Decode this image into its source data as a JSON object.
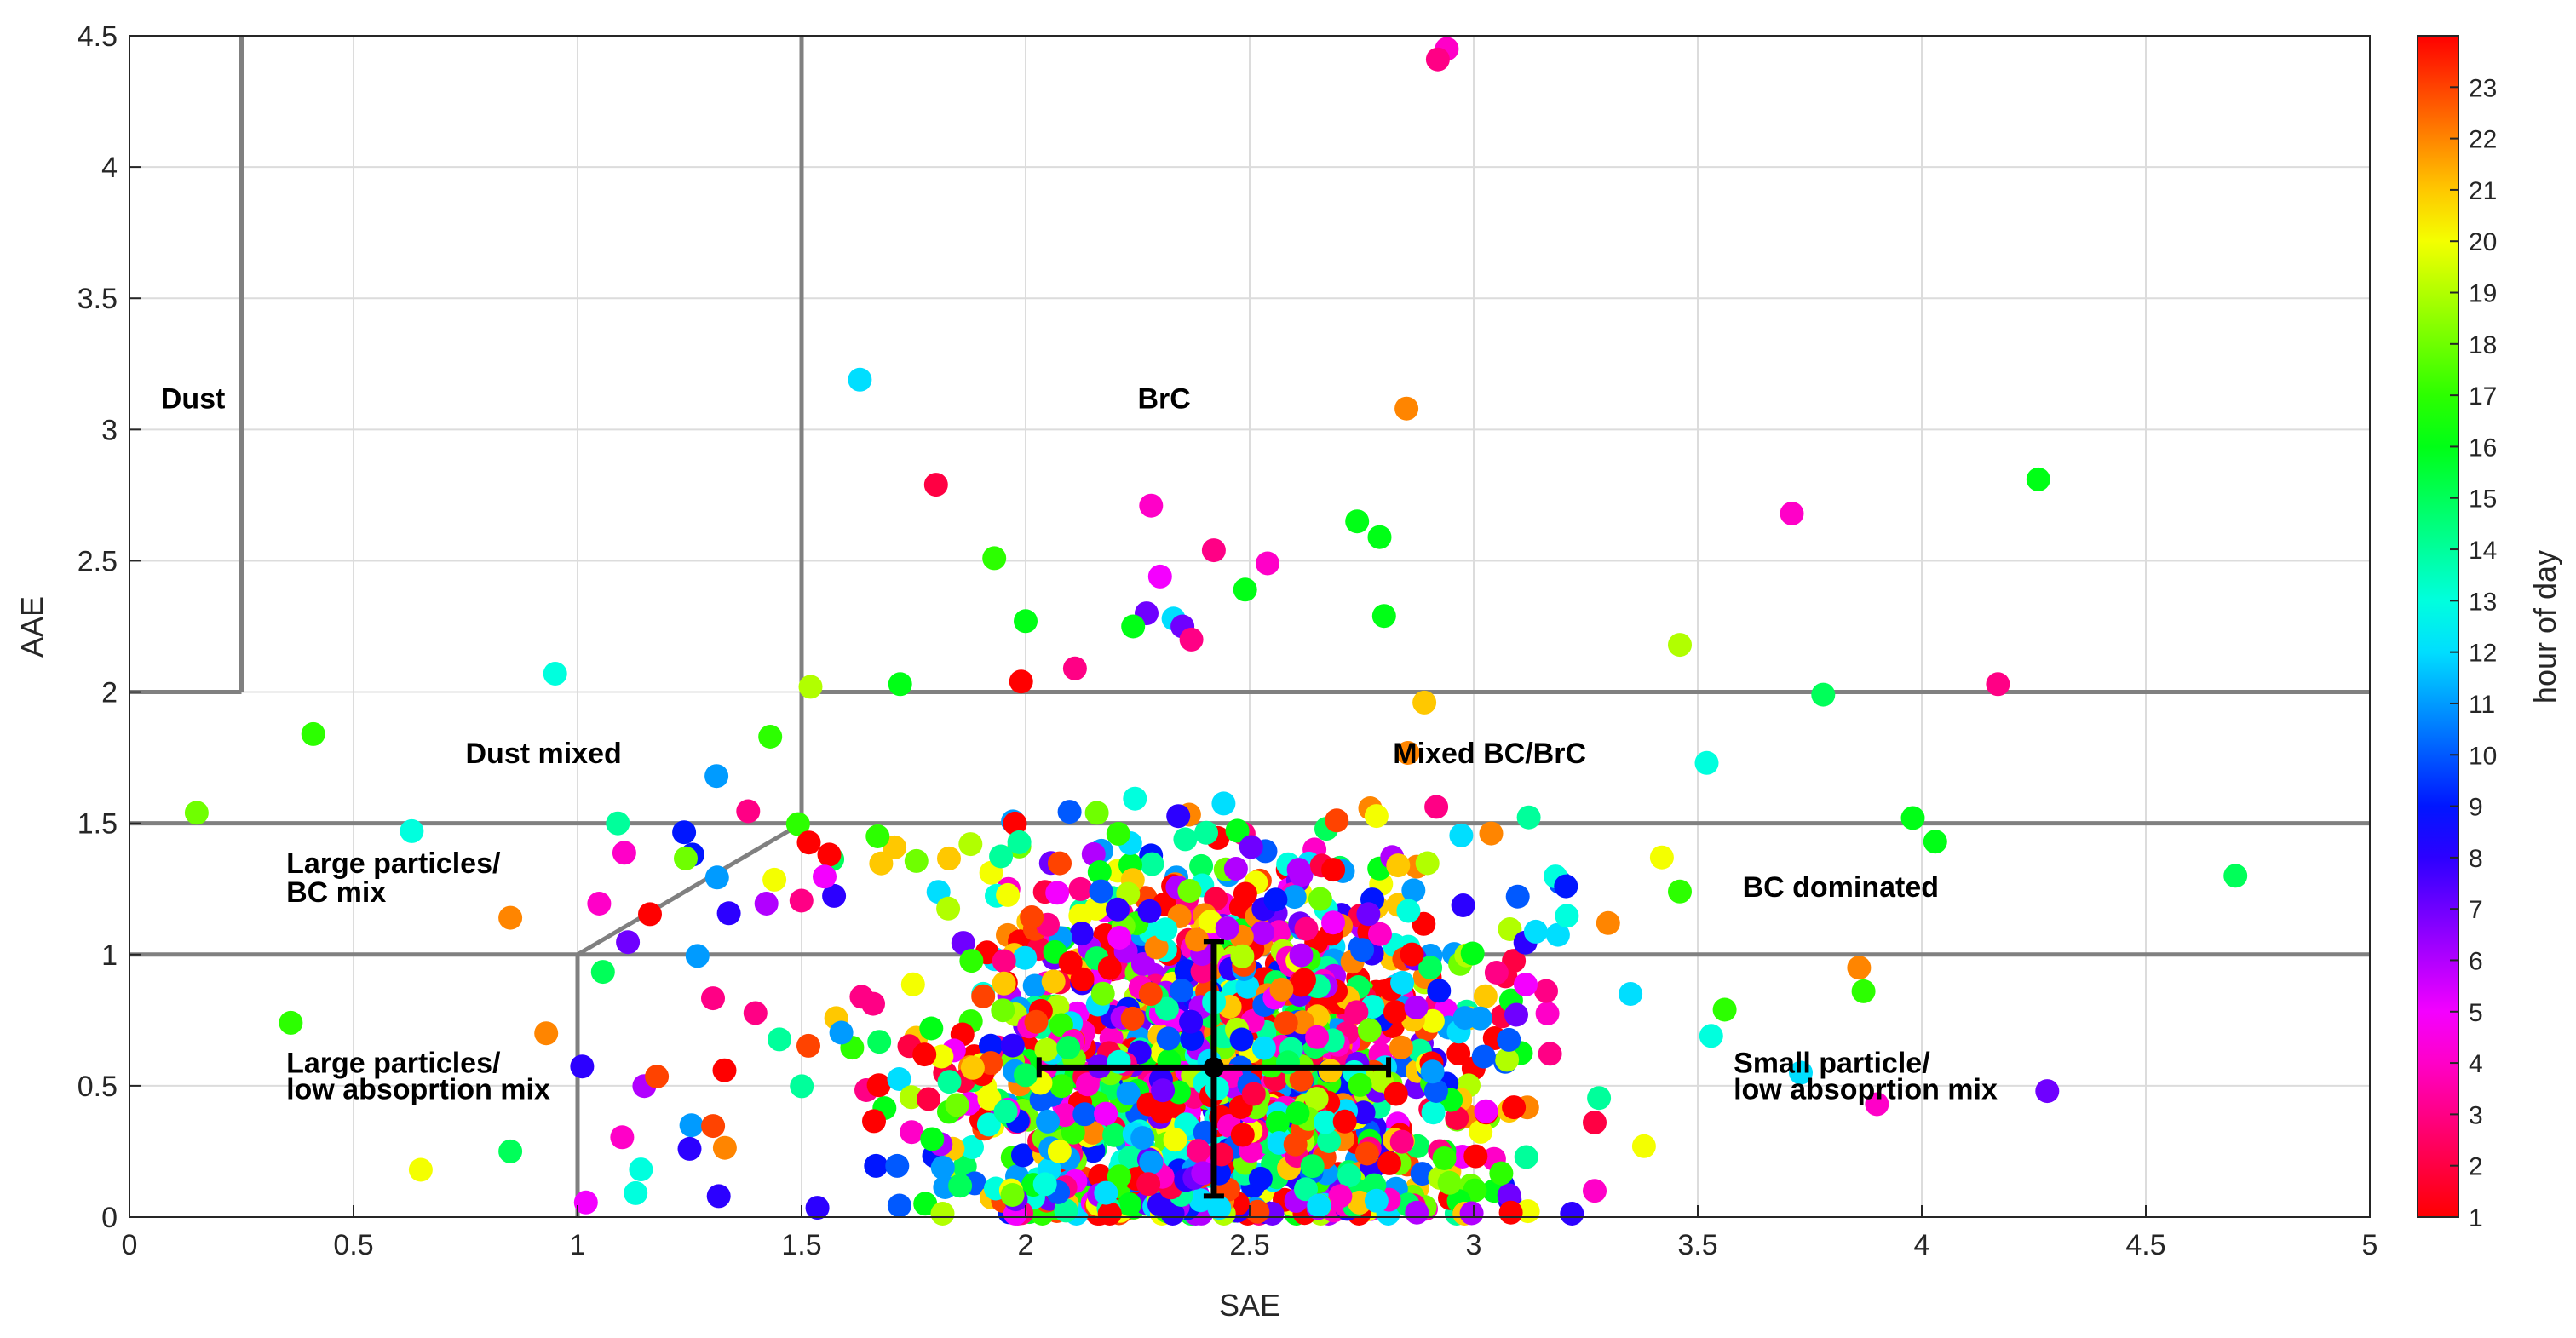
{
  "chart_data": {
    "type": "scatter",
    "title": "",
    "xlabel": "SAE",
    "ylabel": "AAE",
    "xlim": [
      0,
      5
    ],
    "ylim": [
      0,
      4.5
    ],
    "x_ticks": [
      "0",
      "0.5",
      "1",
      "1.5",
      "2",
      "2.5",
      "3",
      "3.5",
      "4",
      "4.5",
      "5"
    ],
    "y_ticks": [
      "0",
      "0.5",
      "1",
      "1.5",
      "2",
      "2.5",
      "3",
      "3.5",
      "4",
      "4.5"
    ],
    "grid": true,
    "colorbar": {
      "label": "hour of day",
      "min": 1,
      "max": 24,
      "ticks": [
        "1",
        "2",
        "3",
        "4",
        "5",
        "6",
        "7",
        "8",
        "9",
        "10",
        "11",
        "12",
        "13",
        "14",
        "15",
        "16",
        "17",
        "18",
        "19",
        "20",
        "21",
        "22",
        "23"
      ]
    },
    "region_labels": [
      {
        "text": "Dust",
        "x": 0.07,
        "y": 3.08
      },
      {
        "text": "BrC",
        "x": 2.25,
        "y": 3.08
      },
      {
        "text": "Dust mixed",
        "x": 0.75,
        "y": 1.73
      },
      {
        "text": "Mixed BC/BrC",
        "x": 2.82,
        "y": 1.73
      },
      {
        "text": "Large particles/",
        "x": 0.35,
        "y": 1.31
      },
      {
        "text": "BC mix",
        "x": 0.35,
        "y": 1.2
      },
      {
        "text": "BC dominated",
        "x": 3.6,
        "y": 1.22
      },
      {
        "text": "Large particles/",
        "x": 0.35,
        "y": 0.55
      },
      {
        "text": "low absoprtion mix",
        "x": 0.35,
        "y": 0.45
      },
      {
        "text": "Small particle/",
        "x": 3.58,
        "y": 0.55
      },
      {
        "text": "low absoprtion mix",
        "x": 3.58,
        "y": 0.45
      }
    ],
    "region_boundaries": [
      [
        [
          0.25,
          2
        ],
        [
          0.25,
          4.5
        ]
      ],
      [
        [
          0,
          2
        ],
        [
          0.25,
          2
        ]
      ],
      [
        [
          1.5,
          1.5
        ],
        [
          1.5,
          4.5
        ]
      ],
      [
        [
          1.5,
          2
        ],
        [
          5,
          2
        ]
      ],
      [
        [
          0,
          1.5
        ],
        [
          5,
          1.5
        ]
      ],
      [
        [
          0,
          1
        ],
        [
          5,
          1
        ]
      ],
      [
        [
          1,
          0
        ],
        [
          1,
          1
        ]
      ],
      [
        [
          1,
          1
        ],
        [
          1.5,
          1.5
        ]
      ]
    ],
    "mean_point": {
      "x": 2.42,
      "y": 0.57,
      "x_error": [
        2.03,
        2.81
      ],
      "y_error": [
        0.08,
        1.05
      ]
    },
    "outliers": [
      {
        "x": 2.94,
        "y": 4.45,
        "hour": 4
      },
      {
        "x": 2.92,
        "y": 4.41,
        "hour": 3
      },
      {
        "x": 1.63,
        "y": 3.19,
        "hour": 12
      },
      {
        "x": 2.85,
        "y": 3.08,
        "hour": 22
      },
      {
        "x": 1.8,
        "y": 2.79,
        "hour": 2
      },
      {
        "x": 2.28,
        "y": 2.71,
        "hour": 4
      },
      {
        "x": 2.42,
        "y": 2.54,
        "hour": 3
      },
      {
        "x": 2.74,
        "y": 2.65,
        "hour": 16
      },
      {
        "x": 2.79,
        "y": 2.59,
        "hour": 16
      },
      {
        "x": 2.54,
        "y": 2.49,
        "hour": 4
      },
      {
        "x": 2.3,
        "y": 2.44,
        "hour": 5
      },
      {
        "x": 1.93,
        "y": 2.51,
        "hour": 17
      },
      {
        "x": 2.49,
        "y": 2.39,
        "hour": 16
      },
      {
        "x": 2.8,
        "y": 2.29,
        "hour": 16
      },
      {
        "x": 2.33,
        "y": 2.28,
        "hour": 12
      },
      {
        "x": 2.27,
        "y": 2.3,
        "hour": 7
      },
      {
        "x": 2.35,
        "y": 2.25,
        "hour": 7
      },
      {
        "x": 2.24,
        "y": 2.25,
        "hour": 16
      },
      {
        "x": 2.37,
        "y": 2.2,
        "hour": 3
      },
      {
        "x": 2.0,
        "y": 2.27,
        "hour": 16
      },
      {
        "x": 2.11,
        "y": 2.09,
        "hour": 3
      },
      {
        "x": 1.99,
        "y": 2.04,
        "hour": 1
      },
      {
        "x": 2.89,
        "y": 1.96,
        "hour": 21
      },
      {
        "x": 0.95,
        "y": 2.07,
        "hour": 13
      },
      {
        "x": 1.52,
        "y": 2.02,
        "hour": 19
      },
      {
        "x": 1.72,
        "y": 2.03,
        "hour": 16
      },
      {
        "x": 3.46,
        "y": 2.18,
        "hour": 19
      },
      {
        "x": 3.78,
        "y": 1.99,
        "hour": 15
      },
      {
        "x": 4.17,
        "y": 2.03,
        "hour": 3
      },
      {
        "x": 3.71,
        "y": 2.68,
        "hour": 4
      },
      {
        "x": 4.26,
        "y": 2.81,
        "hour": 16
      },
      {
        "x": 0.15,
        "y": 1.54,
        "hour": 18
      },
      {
        "x": 0.41,
        "y": 1.84,
        "hour": 17
      },
      {
        "x": 0.63,
        "y": 1.47,
        "hour": 13
      },
      {
        "x": 1.09,
        "y": 1.5,
        "hour": 14
      },
      {
        "x": 1.31,
        "y": 1.68,
        "hour": 11
      },
      {
        "x": 1.43,
        "y": 1.83,
        "hour": 17
      },
      {
        "x": 3.52,
        "y": 1.73,
        "hour": 13
      },
      {
        "x": 3.98,
        "y": 1.52,
        "hour": 16
      },
      {
        "x": 4.03,
        "y": 1.43,
        "hour": 16
      },
      {
        "x": 4.7,
        "y": 1.3,
        "hour": 15
      },
      {
        "x": 0.85,
        "y": 1.14,
        "hour": 22
      },
      {
        "x": 0.93,
        "y": 0.7,
        "hour": 22
      },
      {
        "x": 0.36,
        "y": 0.74,
        "hour": 17
      },
      {
        "x": 0.65,
        "y": 0.18,
        "hour": 20
      },
      {
        "x": 0.85,
        "y": 0.25,
        "hour": 15
      },
      {
        "x": 3.86,
        "y": 0.95,
        "hour": 22
      },
      {
        "x": 3.87,
        "y": 0.86,
        "hour": 17
      },
      {
        "x": 4.28,
        "y": 0.48,
        "hour": 7
      },
      {
        "x": 3.9,
        "y": 0.43,
        "hour": 4
      },
      {
        "x": 3.73,
        "y": 0.55,
        "hour": 12
      },
      {
        "x": 3.42,
        "y": 1.37,
        "hour": 20
      },
      {
        "x": 3.46,
        "y": 1.24,
        "hour": 17
      },
      {
        "x": 3.3,
        "y": 1.12,
        "hour": 22
      },
      {
        "x": 3.35,
        "y": 0.85,
        "hour": 12
      },
      {
        "x": 3.27,
        "y": 0.36,
        "hour": 2
      },
      {
        "x": 3.27,
        "y": 0.1,
        "hour": 4
      },
      {
        "x": 3.38,
        "y": 0.27,
        "hour": 20
      },
      {
        "x": 3.53,
        "y": 0.69,
        "hour": 13
      },
      {
        "x": 3.56,
        "y": 0.79,
        "hour": 17
      }
    ],
    "cluster_note": "Dense cluster of ~1500 points centered near SAE 2.42, AAE 0.57 (SAE ~1.0-3.6, AAE ~0-1.9), colored by hour of day 1-24",
    "cluster": {
      "n": 1500,
      "x_center": 2.42,
      "y_center": 0.57,
      "x_spread": 0.3,
      "y_spread": 0.38,
      "x_range": [
        1.0,
        3.6
      ],
      "y_range": [
        0,
        1.95
      ]
    }
  }
}
